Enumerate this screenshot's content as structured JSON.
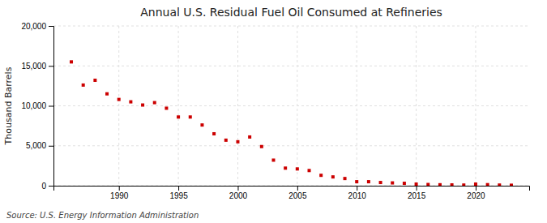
{
  "chart_data": {
    "type": "scatter",
    "title": "Annual U.S. Residual Fuel Oil Consumed at Refineries",
    "ylabel": "Thousand Barrels",
    "annotations": [
      "Source: U.S. Energy Information Administration"
    ],
    "x": [
      1986,
      1987,
      1988,
      1989,
      1990,
      1991,
      1992,
      1993,
      1994,
      1995,
      1996,
      1997,
      1998,
      1999,
      2000,
      2001,
      2002,
      2003,
      2004,
      2005,
      2006,
      2007,
      2008,
      2009,
      2010,
      2011,
      2012,
      2013,
      2014,
      2015,
      2016,
      2017,
      2018,
      2019,
      2020,
      2021,
      2022,
      2023
    ],
    "values": [
      15500,
      12600,
      13200,
      11500,
      10800,
      10500,
      10100,
      10400,
      9700,
      8600,
      8600,
      7600,
      6500,
      5700,
      5500,
      6100,
      4900,
      3200,
      2200,
      2100,
      1900,
      1300,
      1100,
      900,
      500,
      500,
      400,
      350,
      300,
      200,
      150,
      120,
      100,
      80,
      200,
      130,
      80,
      60
    ],
    "color": "#cc0000",
    "marker": "square",
    "xlim": [
      1984.5,
      2024.5
    ],
    "xticks": [
      1990,
      1995,
      2000,
      2005,
      2010,
      2015,
      2020
    ],
    "ylim": [
      0,
      20000
    ],
    "yticks": [
      0,
      {
        "value": 5000,
        "label": "5,000"
      },
      {
        "value": 10000,
        "label": "10,000"
      },
      {
        "value": 15000,
        "label": "15,000"
      },
      {
        "value": 20000,
        "label": "20,000"
      }
    ],
    "grid": true
  }
}
